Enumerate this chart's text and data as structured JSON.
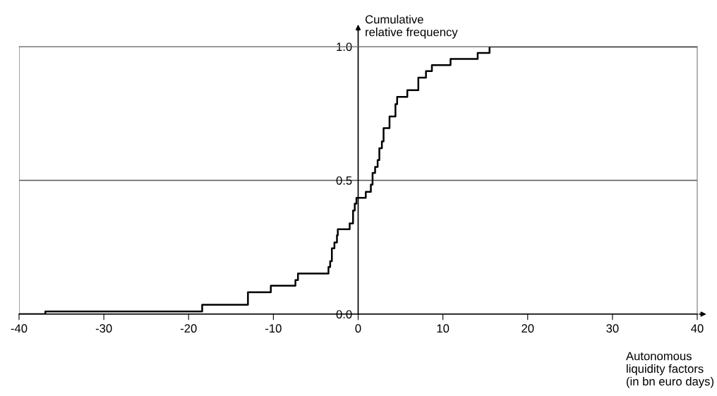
{
  "chart_data": {
    "type": "step",
    "xlabel": "Autonomous\nliquidity factors\n(in bn euro days)",
    "ylabel": "Cumulative\nrelative frequency",
    "x": [
      -40,
      -36.9,
      -18.4,
      -13.0,
      -10.3,
      -7.4,
      -7.1,
      -3.5,
      -3.3,
      -3.1,
      -2.8,
      -2.5,
      -2.4,
      -1.0,
      -0.6,
      -0.4,
      -0.2,
      0.9,
      1.5,
      1.7,
      2.0,
      2.3,
      2.5,
      2.8,
      3.0,
      3.7,
      4.4,
      4.6,
      5.8,
      7.1,
      8.0,
      8.7,
      10.9,
      14.1,
      15.5,
      40
    ],
    "series": [
      {
        "color": "#000000",
        "values": [
          0.0,
          0.01,
          0.035,
          0.082,
          0.106,
          0.127,
          0.152,
          0.176,
          0.198,
          0.246,
          0.268,
          0.295,
          0.317,
          0.339,
          0.387,
          0.413,
          0.435,
          0.457,
          0.484,
          0.528,
          0.55,
          0.576,
          0.62,
          0.646,
          0.695,
          0.739,
          0.785,
          0.812,
          0.837,
          0.884,
          0.908,
          0.931,
          0.954,
          0.976,
          1.0,
          1.0
        ]
      }
    ],
    "xlim": [
      -40,
      40
    ],
    "xticks": [
      -40,
      -30,
      -20,
      -10,
      0,
      10,
      20,
      30,
      40
    ],
    "ylim": [
      0,
      1
    ],
    "yticks": [
      {
        "value": 0,
        "label": "0.0"
      },
      {
        "value": 0.5,
        "label": "0.5"
      },
      {
        "value": 1,
        "label": "1.0"
      }
    ],
    "grid": "y",
    "legend": false,
    "line_style": "solid",
    "marker": "none"
  }
}
